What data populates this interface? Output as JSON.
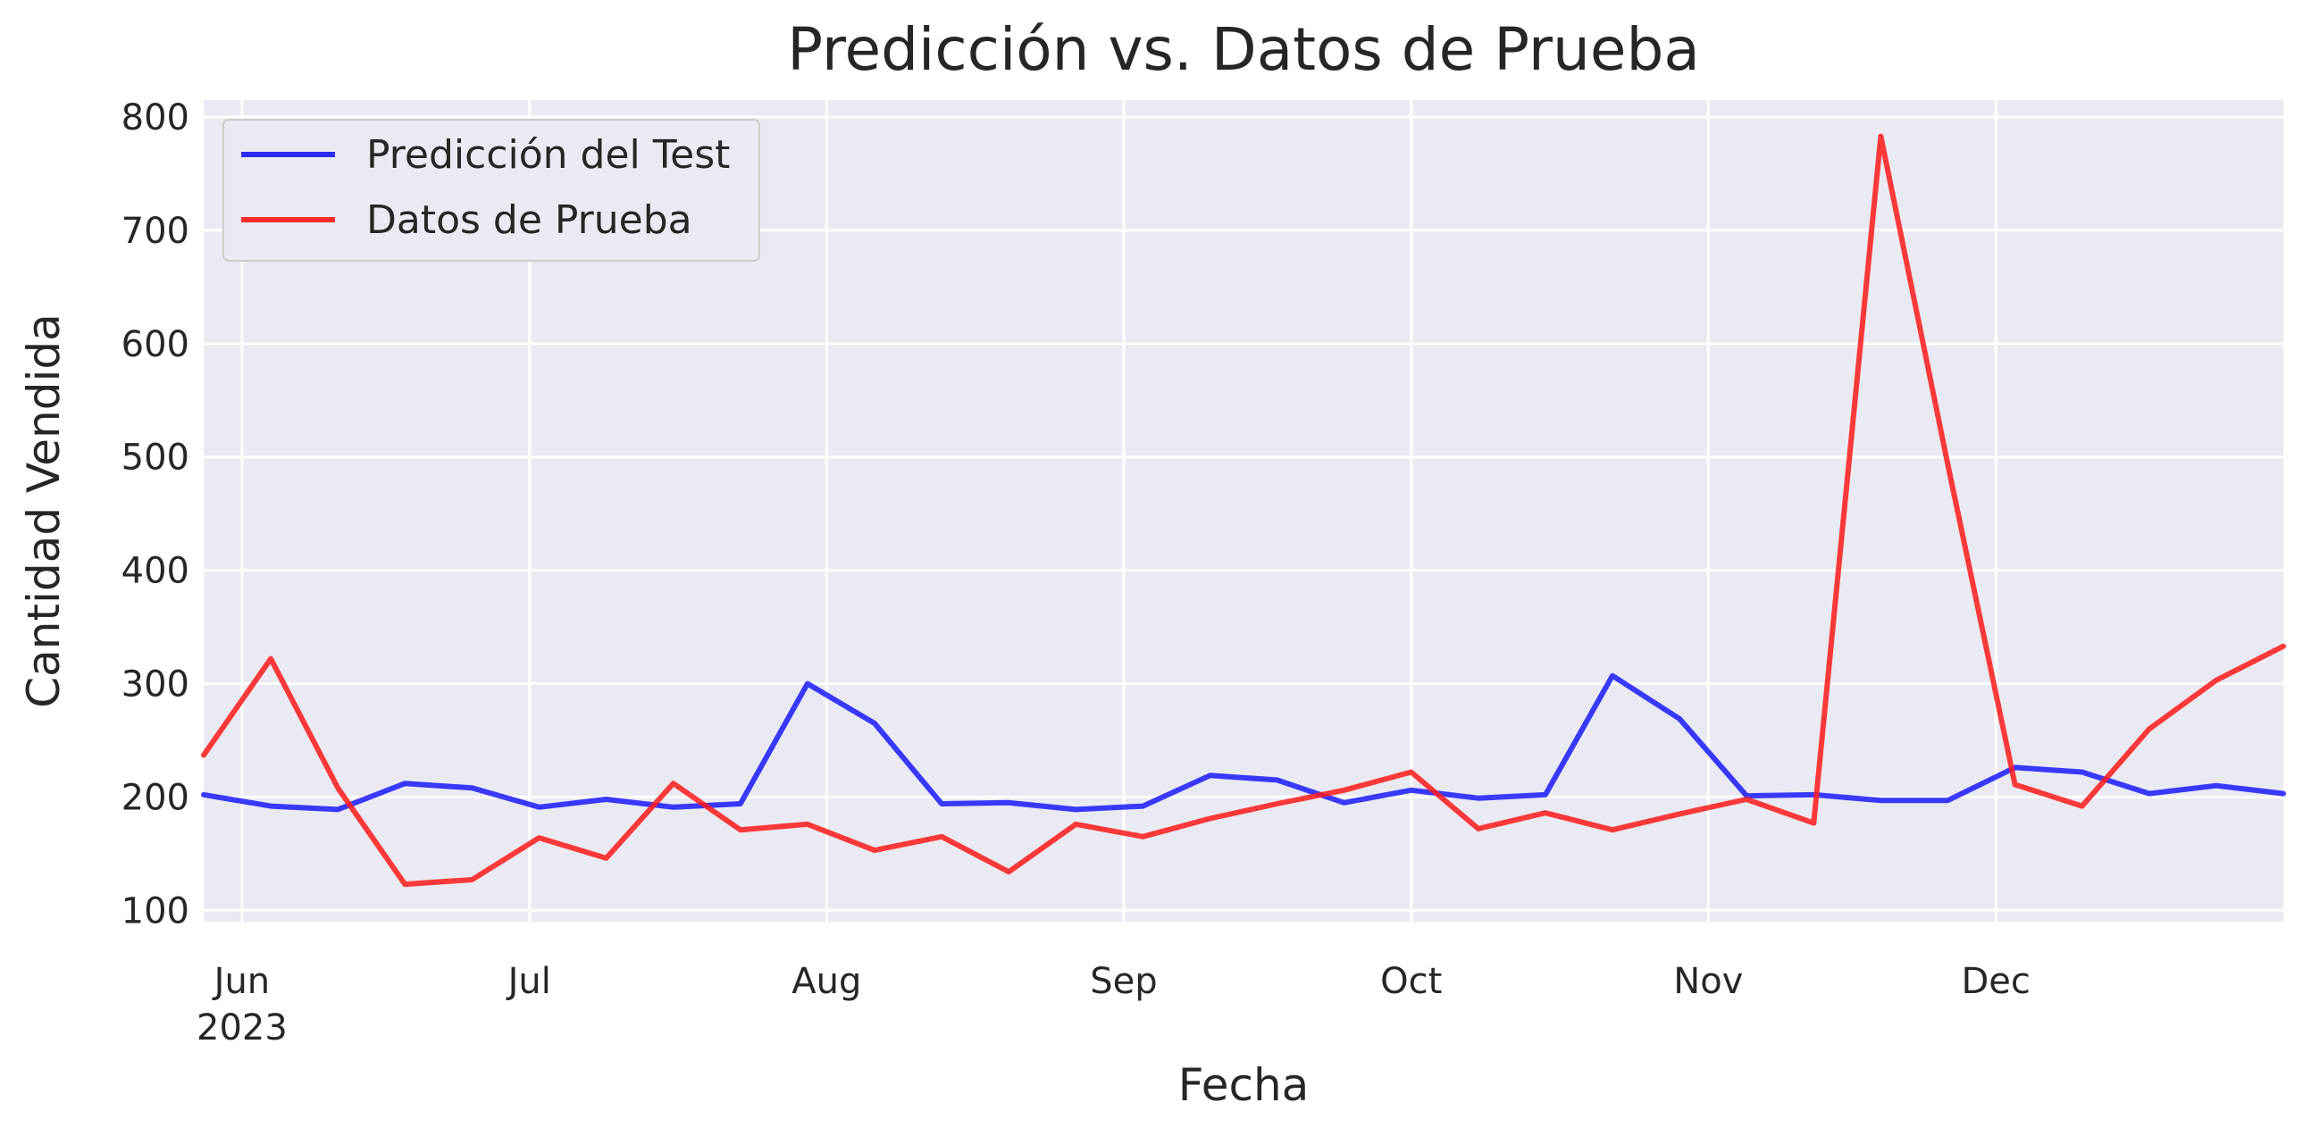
{
  "chart_data": {
    "type": "line",
    "title": "Predicción vs. Datos de Prueba",
    "xlabel": "Fecha",
    "ylabel": "Cantidad Vendida",
    "x_axis_type": "date",
    "xlim": [
      "2023-05-28",
      "2023-12-31"
    ],
    "ylim": [
      90,
      815
    ],
    "grid": true,
    "legend_position": "top-left",
    "background": "#eaeaf2",
    "x_ticks": [
      {
        "date": "2023-06-01",
        "label": "Jun",
        "sublabel": "2023"
      },
      {
        "date": "2023-07-01",
        "label": "Jul",
        "sublabel": ""
      },
      {
        "date": "2023-08-01",
        "label": "Aug",
        "sublabel": ""
      },
      {
        "date": "2023-09-01",
        "label": "Sep",
        "sublabel": ""
      },
      {
        "date": "2023-10-01",
        "label": "Oct",
        "sublabel": ""
      },
      {
        "date": "2023-11-01",
        "label": "Nov",
        "sublabel": ""
      },
      {
        "date": "2023-12-01",
        "label": "Dec",
        "sublabel": ""
      }
    ],
    "y_ticks": [
      100,
      200,
      300,
      400,
      500,
      600,
      700,
      800
    ],
    "x": [
      "2023-05-28",
      "2023-06-04",
      "2023-06-11",
      "2023-06-18",
      "2023-06-25",
      "2023-07-02",
      "2023-07-09",
      "2023-07-16",
      "2023-07-23",
      "2023-07-30",
      "2023-08-06",
      "2023-08-13",
      "2023-08-20",
      "2023-08-27",
      "2023-09-03",
      "2023-09-10",
      "2023-09-17",
      "2023-09-24",
      "2023-10-01",
      "2023-10-08",
      "2023-10-15",
      "2023-10-22",
      "2023-10-29",
      "2023-11-05",
      "2023-11-12",
      "2023-11-19",
      "2023-11-26",
      "2023-12-03",
      "2023-12-10",
      "2023-12-17",
      "2023-12-24",
      "2023-12-31"
    ],
    "series": [
      {
        "name": "Predicción del Test",
        "color": "#1a1aff",
        "values": [
          202,
          192,
          189,
          212,
          208,
          191,
          198,
          191,
          194,
          300,
          265,
          194,
          195,
          189,
          192,
          219,
          215,
          195,
          206,
          199,
          202,
          307,
          269,
          201,
          202,
          197,
          197,
          226,
          222,
          203,
          210,
          203
        ]
      },
      {
        "name": "Datos de Prueba",
        "color": "#ff1a1a",
        "values": [
          237,
          322,
          208,
          123,
          127,
          164,
          146,
          212,
          171,
          176,
          153,
          165,
          134,
          176,
          165,
          181,
          194,
          206,
          222,
          172,
          186,
          171,
          185,
          198,
          177,
          783,
          493,
          211,
          192,
          260,
          303,
          333
        ]
      }
    ]
  }
}
